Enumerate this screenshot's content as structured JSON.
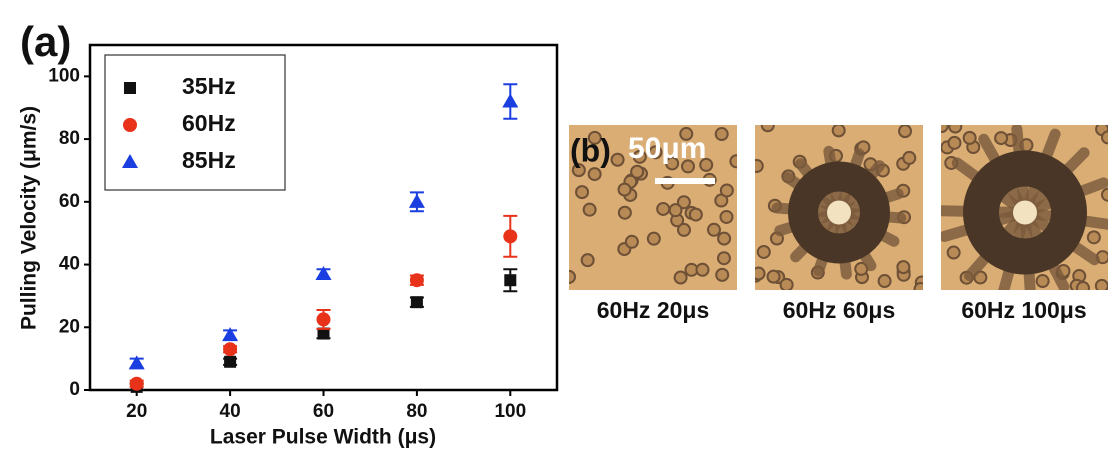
{
  "figure": {
    "panel_a_label": "(a)",
    "panel_b_label": "(b)",
    "scale_bar": "50μm",
    "captions": [
      "60Hz 20μs",
      "60Hz 60μs",
      "60Hz 100μs"
    ]
  },
  "chart_data": {
    "type": "scatter",
    "x_label": "Laser Pulse Width (μs)",
    "y_label": "Pulling Velocity (μm/s)",
    "x": [
      20,
      40,
      60,
      80,
      100
    ],
    "series": [
      {
        "name": "35Hz",
        "color": "#111111",
        "marker": "square",
        "values": [
          1,
          9,
          18,
          28,
          35
        ],
        "errors": [
          1,
          1,
          1.5,
          1.5,
          3.5
        ]
      },
      {
        "name": "60Hz",
        "color": "#e8321a",
        "marker": "circle",
        "values": [
          2,
          13,
          22.5,
          35,
          49
        ],
        "errors": [
          1,
          1,
          3,
          1.5,
          6.5
        ]
      },
      {
        "name": "85Hz",
        "color": "#1a3ee0",
        "marker": "triangle",
        "values": [
          8.5,
          17.5,
          37,
          60,
          92
        ],
        "errors": [
          1.5,
          1.5,
          1.5,
          3,
          5.5
        ]
      }
    ],
    "xlim": [
      10,
      110
    ],
    "ylim": [
      0,
      110
    ],
    "xticks": [
      20,
      40,
      60,
      80,
      100
    ],
    "yticks": [
      0,
      20,
      40,
      60,
      80,
      100
    ],
    "legend": "upper left"
  }
}
